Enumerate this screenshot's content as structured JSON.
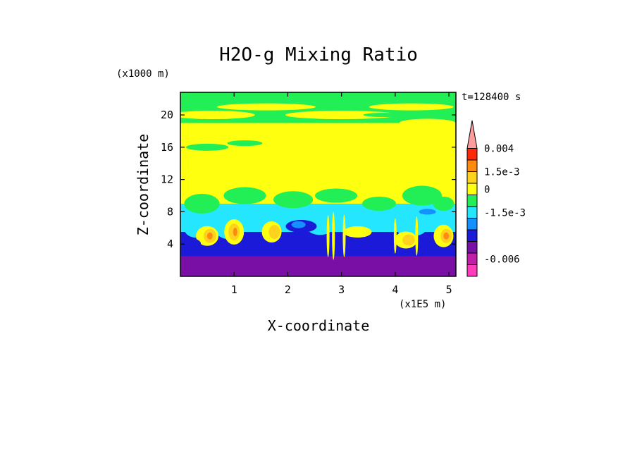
{
  "chart_data": {
    "type": "heatmap",
    "title": "H2O-g Mixing Ratio",
    "xlabel": "X-coordinate",
    "ylabel": "Z-coordinate",
    "x_scale_label": "(x1E5 m)",
    "y_scale_label": "(x1000 m)",
    "time_label": "t=128400 s",
    "xlim": [
      0,
      5.13
    ],
    "ylim": [
      0,
      22.8
    ],
    "x_ticks": [
      1,
      2,
      3,
      4,
      5
    ],
    "y_ticks": [
      4,
      8,
      12,
      16,
      20
    ],
    "colorbar": {
      "levels": [
        {
          "color": "#ff3dbb"
        },
        {
          "color": "#c020a8"
        },
        {
          "color": "#7a0fa5"
        },
        {
          "color": "#1a1ad8"
        },
        {
          "color": "#1490ff"
        },
        {
          "color": "#24e6ff"
        },
        {
          "color": "#22ee55"
        },
        {
          "color": "#ffff10"
        },
        {
          "color": "#ffd21e"
        },
        {
          "color": "#ff8a10"
        },
        {
          "color": "#ff2808"
        },
        {
          "color": "#ff9c9c"
        }
      ],
      "labels": [
        {
          "text": "0.004",
          "level": 11
        },
        {
          "text": "1.5e-3",
          "level": 9
        },
        {
          "text": "0",
          "level": 7.5
        },
        {
          "text": "-1.5e-3",
          "level": 5.5
        },
        {
          "text": "-0.006",
          "level": 1.5
        }
      ]
    }
  }
}
